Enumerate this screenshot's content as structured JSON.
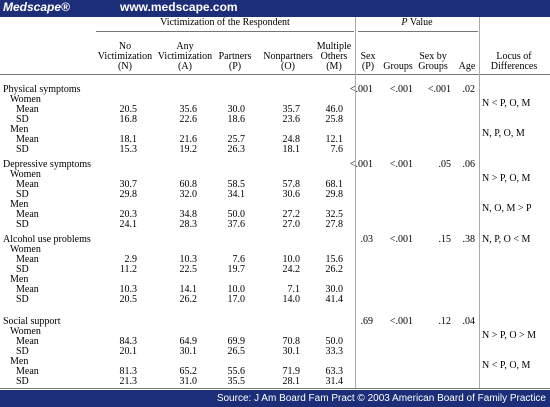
{
  "header": {
    "brand": "Medscape®",
    "url": "www.medscape.com"
  },
  "table": {
    "group_headers": [
      "Victimization of the Respondent",
      "P Value"
    ],
    "columns": [
      "No Victimization (N)",
      "Any Victimization (A)",
      "Partners (P)",
      "Nonpartners (O)",
      "Multiple Others (M)",
      "Sex (P)",
      "Groups",
      "Sex by Groups",
      "Age",
      "Locus of Differences"
    ],
    "sections": [
      {
        "label": "Physical symptoms",
        "p_values": [
          "<.001",
          "<.001",
          "<.001",
          ".02"
        ],
        "groups": [
          {
            "label": "Women",
            "locus": "N < P, O, M",
            "rows": [
              {
                "label": "Mean",
                "values": [
                  "20.5",
                  "35.6",
                  "30.0",
                  "35.7",
                  "46.0"
                ]
              },
              {
                "label": "SD",
                "values": [
                  "16.8",
                  "22.6",
                  "18.6",
                  "23.6",
                  "25.8"
                ]
              }
            ]
          },
          {
            "label": "Men",
            "locus": "N, P, O, M",
            "rows": [
              {
                "label": "Mean",
                "values": [
                  "18.1",
                  "21.6",
                  "25.7",
                  "24.8",
                  "12.1"
                ]
              },
              {
                "label": "SD",
                "values": [
                  "15.3",
                  "19.2",
                  "26.3",
                  "18.1",
                  "7.6"
                ]
              }
            ]
          }
        ]
      },
      {
        "label": "Depressive symptoms",
        "p_values": [
          "<.001",
          "<.001",
          ".05",
          ".06"
        ],
        "groups": [
          {
            "label": "Women",
            "locus": "N > P, O, M",
            "rows": [
              {
                "label": "Mean",
                "values": [
                  "30.7",
                  "60.8",
                  "58.5",
                  "57.8",
                  "68.1"
                ]
              },
              {
                "label": "SD",
                "values": [
                  "29.8",
                  "32.0",
                  "34.1",
                  "30.6",
                  "29.8"
                ]
              }
            ]
          },
          {
            "label": "Men",
            "locus": "N, O, M > P",
            "rows": [
              {
                "label": "Mean",
                "values": [
                  "20.3",
                  "34.8",
                  "50.0",
                  "27.2",
                  "32.5"
                ]
              },
              {
                "label": "SD",
                "values": [
                  "24.1",
                  "28.3",
                  "37.6",
                  "27.0",
                  "27.8"
                ]
              }
            ]
          }
        ]
      },
      {
        "label": "Alcohol use problems",
        "p_values": [
          ".03",
          "<.001",
          ".15",
          ".38"
        ],
        "locus": "N, P, O < M",
        "groups": [
          {
            "label": "Women",
            "rows": [
              {
                "label": "Mean",
                "values": [
                  "2.9",
                  "10.3",
                  "7.6",
                  "10.0",
                  "15.6"
                ]
              },
              {
                "label": "SD",
                "values": [
                  "11.2",
                  "22.5",
                  "19.7",
                  "24.2",
                  "26.2"
                ]
              }
            ]
          },
          {
            "label": "Men",
            "rows": [
              {
                "label": "Mean",
                "values": [
                  "10.3",
                  "14.1",
                  "10.0",
                  "7.1",
                  "30.0"
                ]
              },
              {
                "label": "SD",
                "values": [
                  "20.5",
                  "26.2",
                  "17.0",
                  "14.0",
                  "41.4"
                ]
              }
            ]
          }
        ]
      },
      {
        "label": "Social support",
        "p_values": [
          ".69",
          "<.001",
          ".12",
          ".04"
        ],
        "groups": [
          {
            "label": "Women",
            "locus": "N > P, O > M",
            "rows": [
              {
                "label": "Mean",
                "values": [
                  "84.3",
                  "64.9",
                  "69.9",
                  "70.8",
                  "50.0"
                ]
              },
              {
                "label": "SD",
                "values": [
                  "20.1",
                  "30.1",
                  "26.5",
                  "30.1",
                  "33.3"
                ]
              }
            ]
          },
          {
            "label": "Men",
            "locus": "N < P, O, M",
            "rows": [
              {
                "label": "Mean",
                "values": [
                  "81.3",
                  "65.2",
                  "55.6",
                  "71.9",
                  "63.3"
                ]
              },
              {
                "label": "SD",
                "values": [
                  "21.3",
                  "31.0",
                  "35.5",
                  "28.1",
                  "31.4"
                ]
              }
            ]
          }
        ]
      }
    ]
  },
  "footer": "Source: J Am Board Fam Pract © 2003 American Board of Family Practice"
}
